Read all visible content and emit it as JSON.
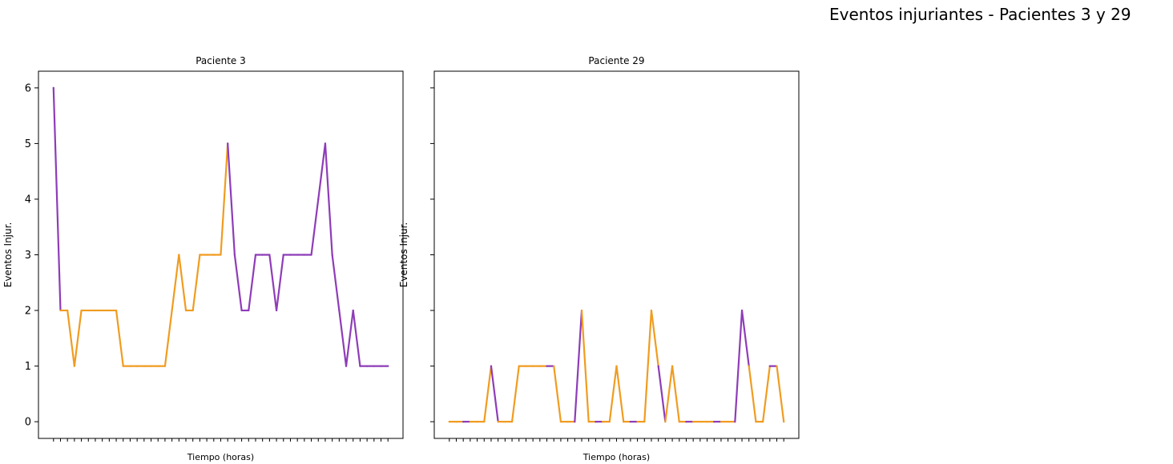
{
  "figure": {
    "suptitle": "Eventos injuriantes - Pacientes 3 y 29"
  },
  "colors": {
    "purple": "#8e3cb8",
    "orange": "#f09c20"
  },
  "chart_data": [
    {
      "type": "line",
      "title": "Paciente 3",
      "xlabel": "Tiempo (horas)",
      "ylabel": "Eventos Injur.",
      "ylim": [
        -0.3,
        6.3
      ],
      "yticks": [
        0,
        1,
        2,
        3,
        4,
        5,
        6
      ],
      "grid": false,
      "legend": "none",
      "x_tick_labels_visible": false,
      "x": [
        0,
        1,
        2,
        3,
        4,
        5,
        6,
        7,
        8,
        9,
        10,
        11,
        12,
        13,
        14,
        15,
        16,
        17,
        18,
        19,
        20,
        21,
        22,
        23,
        24,
        25,
        26,
        27,
        28,
        29,
        30,
        31,
        32,
        33,
        34,
        35,
        36,
        37,
        38,
        39,
        40,
        41,
        42,
        43,
        44,
        45,
        46,
        47,
        48
      ],
      "values": [
        6,
        2,
        2,
        1,
        2,
        2,
        2,
        2,
        2,
        2,
        1,
        1,
        1,
        1,
        1,
        1,
        1,
        2,
        3,
        2,
        2,
        3,
        3,
        3,
        3,
        5,
        3,
        2,
        2,
        3,
        3,
        3,
        2,
        3,
        3,
        3,
        3,
        3,
        4,
        5,
        3,
        2,
        1,
        2,
        1,
        1,
        1,
        1,
        1
      ],
      "segment_colors": [
        "purple",
        "orange",
        "orange",
        "orange",
        "orange",
        "orange",
        "orange",
        "orange",
        "orange",
        "orange",
        "orange",
        "orange",
        "orange",
        "orange",
        "orange",
        "orange",
        "orange",
        "orange",
        "orange",
        "orange",
        "orange",
        "orange",
        "orange",
        "orange",
        "orange",
        "purple",
        "purple",
        "purple",
        "purple",
        "purple",
        "purple",
        "purple",
        "purple",
        "purple",
        "purple",
        "purple",
        "purple",
        "purple",
        "purple",
        "purple",
        "purple",
        "purple",
        "purple",
        "purple",
        "purple",
        "purple",
        "purple",
        "purple"
      ]
    },
    {
      "type": "line",
      "title": "Paciente 29",
      "xlabel": "Tiempo (horas)",
      "ylabel": "Eventos Injur.",
      "ylim": [
        -0.3,
        6.3
      ],
      "yticks": [
        0,
        1,
        2,
        3,
        4,
        5,
        6
      ],
      "grid": false,
      "legend": "none",
      "x_tick_labels_visible": false,
      "y_tick_labels_visible": false,
      "x": [
        0,
        1,
        2,
        3,
        4,
        5,
        6,
        7,
        8,
        9,
        10,
        11,
        12,
        13,
        14,
        15,
        16,
        17,
        18,
        19,
        20,
        21,
        22,
        23,
        24,
        25,
        26,
        27,
        28,
        29,
        30,
        31,
        32,
        33,
        34,
        35,
        36,
        37,
        38,
        39,
        40,
        41,
        42,
        43,
        44,
        45,
        46,
        47,
        48
      ],
      "values": [
        0,
        0,
        0,
        0,
        0,
        0,
        1,
        0,
        0,
        0,
        1,
        1,
        1,
        1,
        1,
        1,
        0,
        0,
        0,
        2,
        0,
        0,
        0,
        0,
        1,
        0,
        0,
        0,
        0,
        2,
        1,
        0,
        1,
        0,
        0,
        0,
        0,
        0,
        0,
        0,
        0,
        0,
        2,
        1,
        0,
        0,
        1,
        1,
        0
      ],
      "segment_colors": [
        "orange",
        "orange",
        "purple",
        "orange",
        "orange",
        "orange",
        "purple",
        "orange",
        "orange",
        "orange",
        "orange",
        "orange",
        "orange",
        "orange",
        "purple",
        "orange",
        "orange",
        "orange",
        "purple",
        "orange",
        "orange",
        "purple",
        "orange",
        "orange",
        "orange",
        "orange",
        "purple",
        "orange",
        "orange",
        "orange",
        "purple",
        "orange",
        "orange",
        "orange",
        "purple",
        "orange",
        "orange",
        "orange",
        "purple",
        "orange",
        "orange",
        "purple",
        "purple",
        "orange",
        "orange",
        "orange",
        "purple",
        "orange"
      ]
    }
  ]
}
